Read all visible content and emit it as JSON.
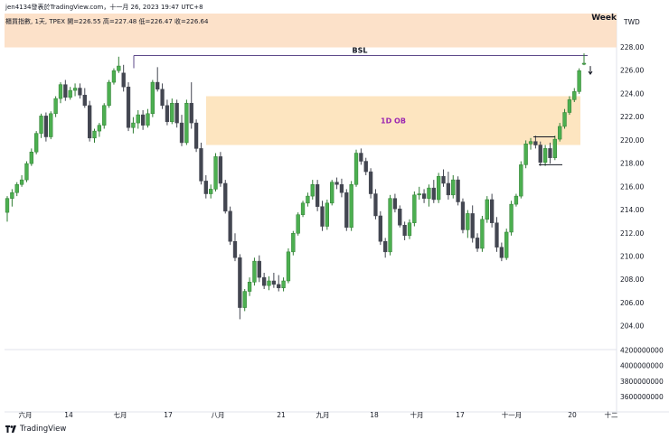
{
  "header": {
    "publish_line": "jen4134發表於TradingView.com，十一月 26, 2023 19:47 UTC+8",
    "symbol_line": "櫃買指數, 1天, TPEX  開=226.55  高=227.48  低=226.47  收=226.64"
  },
  "footer": {
    "brand": "TradingView"
  },
  "colors": {
    "up": "#4caf50",
    "up_border": "#2e7d32",
    "down": "#434651",
    "zone": "#fde2b9",
    "zone_weekly": "#fbdcc0",
    "ob_label": "#9c27b0",
    "bsl_line": "#5d4a8a"
  },
  "chart_data": {
    "type": "candlestick",
    "currency": "TWD",
    "y_ticks": [
      "228.00",
      "226.00",
      "224.00",
      "222.00",
      "220.00",
      "218.00",
      "216.00",
      "214.00",
      "212.00",
      "210.00",
      "208.00",
      "206.00",
      "204.00"
    ],
    "volume_ticks": [
      "4200000000",
      "4000000000",
      "3800000000",
      "3600000000"
    ],
    "x_ticks": [
      "六月",
      "14",
      "七月",
      "17",
      "八月",
      "21",
      "九月",
      "18",
      "十月",
      "17",
      "十一月",
      "20",
      "十二"
    ],
    "ylim": [
      203.0,
      230.5
    ],
    "zones": [
      {
        "label": "Week",
        "top": 230.5,
        "bottom": 228.0
      },
      {
        "label": "1D OB",
        "top": 223.8,
        "bottom": 219.6
      }
    ],
    "lines": [
      {
        "label": "BSL",
        "value": 227.3
      }
    ],
    "candles": [
      [
        213.8,
        215.2,
        213.0,
        215.0
      ],
      [
        215.0,
        215.8,
        214.3,
        215.5
      ],
      [
        215.5,
        216.4,
        215.2,
        216.2
      ],
      [
        216.2,
        217.0,
        216.0,
        216.6
      ],
      [
        216.6,
        218.2,
        216.4,
        218.0
      ],
      [
        218.0,
        219.3,
        217.8,
        219.0
      ],
      [
        219.0,
        220.8,
        218.8,
        220.6
      ],
      [
        220.6,
        222.3,
        220.2,
        222.1
      ],
      [
        222.1,
        222.4,
        219.9,
        220.3
      ],
      [
        220.3,
        222.5,
        220.1,
        222.3
      ],
      [
        222.3,
        223.8,
        222.0,
        223.6
      ],
      [
        223.6,
        225.0,
        223.2,
        224.8
      ],
      [
        224.8,
        225.2,
        223.4,
        223.7
      ],
      [
        223.7,
        224.6,
        223.5,
        224.3
      ],
      [
        224.3,
        224.9,
        223.8,
        224.5
      ],
      [
        224.5,
        224.9,
        223.6,
        223.9
      ],
      [
        223.9,
        224.5,
        222.8,
        223.0
      ],
      [
        223.0,
        223.4,
        219.9,
        220.2
      ],
      [
        220.2,
        221.0,
        219.8,
        220.8
      ],
      [
        220.8,
        221.5,
        220.3,
        221.3
      ],
      [
        221.3,
        223.2,
        221.0,
        223.0
      ],
      [
        223.0,
        225.2,
        222.8,
        225.0
      ],
      [
        225.0,
        226.2,
        224.8,
        226.0
      ],
      [
        226.0,
        227.2,
        225.8,
        226.4
      ],
      [
        225.8,
        226.5,
        224.2,
        224.6
      ],
      [
        224.6,
        225.0,
        220.8,
        221.1
      ],
      [
        221.1,
        222.0,
        220.6,
        221.5
      ],
      [
        221.5,
        222.6,
        221.0,
        222.2
      ],
      [
        222.2,
        222.6,
        220.9,
        221.3
      ],
      [
        221.3,
        222.7,
        221.1,
        222.3
      ],
      [
        222.3,
        225.2,
        222.0,
        225.0
      ],
      [
        225.0,
        226.3,
        224.2,
        224.4
      ],
      [
        224.4,
        224.9,
        222.7,
        223.0
      ],
      [
        223.0,
        223.5,
        221.3,
        221.6
      ],
      [
        221.6,
        223.6,
        221.4,
        223.2
      ],
      [
        223.2,
        223.5,
        221.1,
        221.5
      ],
      [
        221.5,
        222.2,
        219.5,
        219.8
      ],
      [
        219.8,
        223.5,
        219.6,
        223.2
      ],
      [
        223.2,
        225.0,
        221.0,
        221.5
      ],
      [
        221.5,
        221.8,
        219.0,
        219.3
      ],
      [
        219.3,
        219.8,
        216.2,
        216.5
      ],
      [
        216.5,
        217.0,
        215.0,
        215.4
      ],
      [
        215.4,
        216.2,
        215.0,
        215.8
      ],
      [
        215.8,
        218.9,
        215.6,
        218.6
      ],
      [
        218.6,
        219.0,
        216.0,
        216.3
      ],
      [
        216.3,
        216.6,
        213.7,
        213.9
      ],
      [
        213.9,
        214.3,
        211.0,
        211.3
      ],
      [
        211.3,
        212.0,
        209.6,
        209.9
      ],
      [
        209.9,
        210.2,
        204.6,
        205.6
      ],
      [
        205.6,
        207.2,
        205.3,
        207.0
      ],
      [
        207.0,
        208.2,
        206.6,
        207.8
      ],
      [
        207.8,
        209.9,
        207.5,
        209.6
      ],
      [
        209.6,
        210.1,
        207.8,
        208.2
      ],
      [
        208.2,
        208.6,
        207.2,
        207.5
      ],
      [
        207.5,
        208.3,
        207.1,
        207.9
      ],
      [
        207.9,
        208.6,
        207.3,
        207.6
      ],
      [
        207.6,
        208.4,
        207.0,
        207.3
      ],
      [
        207.3,
        208.2,
        207.0,
        207.9
      ],
      [
        207.9,
        210.7,
        207.7,
        210.4
      ],
      [
        210.4,
        212.2,
        210.1,
        212.0
      ],
      [
        212.0,
        213.8,
        211.8,
        213.6
      ],
      [
        213.6,
        214.8,
        213.4,
        214.6
      ],
      [
        214.6,
        215.5,
        214.3,
        215.2
      ],
      [
        215.2,
        216.6,
        214.9,
        216.2
      ],
      [
        216.2,
        216.6,
        213.9,
        214.3
      ],
      [
        214.3,
        214.8,
        212.2,
        212.6
      ],
      [
        212.6,
        214.9,
        212.3,
        214.6
      ],
      [
        214.6,
        216.6,
        214.4,
        216.4
      ],
      [
        216.4,
        216.8,
        215.8,
        216.2
      ],
      [
        216.2,
        216.7,
        215.1,
        215.5
      ],
      [
        215.5,
        215.8,
        212.2,
        212.5
      ],
      [
        212.5,
        216.5,
        212.2,
        216.2
      ],
      [
        216.2,
        219.2,
        216.0,
        218.9
      ],
      [
        218.9,
        219.3,
        217.9,
        218.2
      ],
      [
        218.2,
        218.5,
        217.0,
        217.3
      ],
      [
        217.3,
        217.6,
        215.0,
        215.4
      ],
      [
        215.4,
        215.8,
        213.2,
        213.5
      ],
      [
        213.5,
        213.9,
        211.0,
        211.3
      ],
      [
        211.3,
        211.6,
        209.9,
        210.4
      ],
      [
        210.4,
        215.3,
        210.1,
        215.0
      ],
      [
        215.0,
        215.4,
        213.8,
        214.1
      ],
      [
        214.1,
        214.4,
        212.5,
        212.7
      ],
      [
        212.7,
        213.0,
        211.4,
        211.8
      ],
      [
        211.8,
        213.2,
        211.5,
        212.9
      ],
      [
        212.9,
        215.6,
        212.6,
        215.3
      ],
      [
        215.3,
        216.0,
        214.9,
        215.4
      ],
      [
        215.4,
        215.8,
        214.6,
        215.0
      ],
      [
        215.0,
        216.2,
        214.3,
        215.9
      ],
      [
        215.9,
        216.6,
        214.6,
        214.9
      ],
      [
        214.9,
        217.2,
        214.6,
        216.9
      ],
      [
        216.9,
        217.5,
        216.0,
        216.3
      ],
      [
        216.3,
        217.3,
        214.9,
        215.3
      ],
      [
        215.3,
        217.0,
        215.0,
        216.6
      ],
      [
        216.6,
        216.9,
        214.4,
        214.7
      ],
      [
        214.7,
        215.0,
        212.0,
        212.3
      ],
      [
        212.3,
        214.0,
        211.6,
        213.7
      ],
      [
        213.7,
        214.4,
        211.2,
        211.6
      ],
      [
        211.6,
        212.0,
        210.4,
        210.7
      ],
      [
        210.7,
        213.5,
        210.4,
        213.2
      ],
      [
        213.2,
        215.2,
        212.9,
        214.9
      ],
      [
        214.9,
        215.4,
        212.5,
        212.9
      ],
      [
        212.9,
        213.4,
        210.4,
        210.8
      ],
      [
        210.8,
        211.2,
        209.6,
        209.9
      ],
      [
        209.9,
        212.4,
        209.7,
        212.1
      ],
      [
        212.1,
        214.8,
        211.8,
        214.5
      ],
      [
        214.5,
        215.4,
        214.3,
        215.2
      ],
      [
        215.2,
        218.2,
        215.0,
        217.9
      ],
      [
        217.9,
        220.0,
        217.6,
        219.7
      ],
      [
        219.7,
        220.2,
        219.2,
        219.9
      ],
      [
        219.9,
        220.4,
        219.3,
        219.6
      ],
      [
        219.6,
        219.9,
        217.8,
        218.1
      ],
      [
        218.1,
        219.6,
        217.8,
        219.3
      ],
      [
        219.3,
        219.8,
        218.0,
        218.5
      ],
      [
        218.5,
        220.4,
        218.3,
        220.1
      ],
      [
        220.1,
        221.5,
        219.9,
        221.2
      ],
      [
        221.2,
        222.7,
        221.0,
        222.4
      ],
      [
        222.4,
        223.8,
        222.2,
        223.5
      ],
      [
        223.5,
        224.5,
        223.3,
        224.2
      ],
      [
        224.2,
        226.2,
        224.0,
        226.0
      ],
      [
        226.55,
        227.48,
        226.47,
        226.64
      ]
    ]
  }
}
